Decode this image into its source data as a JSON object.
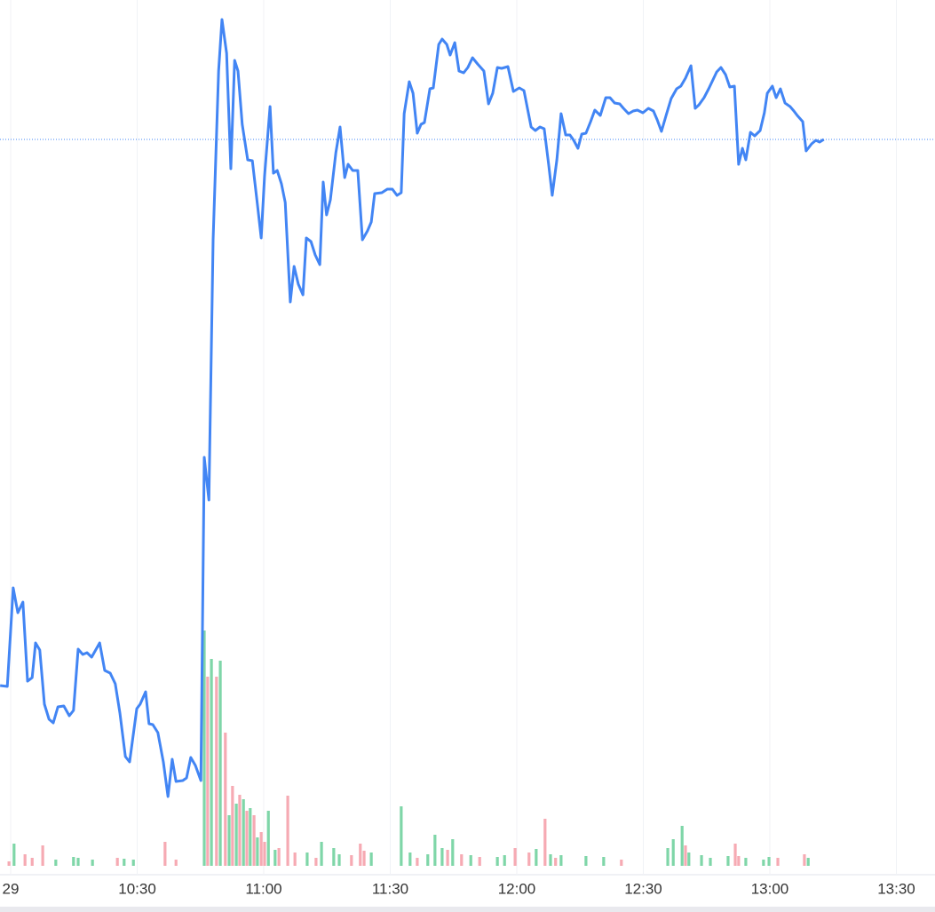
{
  "chart_data": {
    "type": "line",
    "xlim": [
      -2.53,
      219.16
    ],
    "xticks": [
      {
        "value": 0,
        "label": "29"
      },
      {
        "value": 30,
        "label": "10:30"
      },
      {
        "value": 60,
        "label": "11:00"
      },
      {
        "value": 90,
        "label": "11:30"
      },
      {
        "value": 120,
        "label": "12:00"
      },
      {
        "value": 150,
        "label": "12:30"
      },
      {
        "value": 180,
        "label": "13:00"
      },
      {
        "value": 210,
        "label": "13:30"
      }
    ],
    "ylim": [
      0,
      1000
    ],
    "y2lim": [
      0,
      975
    ],
    "grid": true,
    "series": [
      {
        "color": "#4285f4",
        "x": [
          -2.5,
          -0.8,
          0.6,
          1.7,
          2.9,
          4.0,
          5.1,
          5.9,
          6.9,
          8.0,
          9.1,
          10.1,
          11.2,
          12.6,
          13.9,
          14.9,
          16.0,
          17.1,
          18.1,
          19.2,
          21.1,
          22.3,
          23.6,
          24.8,
          25.9,
          27.2,
          28.2,
          29.9,
          30.7,
          32.0,
          32.8,
          33.7,
          34.9,
          36.2,
          37.3,
          38.3,
          39.2,
          40.8,
          41.7,
          42.7,
          43.8,
          45.1,
          45.9,
          47.0,
          48.0,
          49.3,
          50.1,
          51.2,
          52.2,
          53.1,
          53.9,
          54.9,
          56.2,
          57.3,
          58.5,
          59.4,
          60.2,
          61.5,
          62.3,
          63.2,
          64.2,
          65.1,
          66.3,
          67.2,
          68.2,
          69.3,
          70.1,
          71.2,
          72.2,
          73.3,
          74.1,
          74.9,
          75.8,
          77.1,
          78.1,
          79.2,
          80.0,
          81.1,
          82.3,
          83.4,
          84.6,
          85.5,
          86.3,
          88.0,
          89.3,
          90.5,
          91.6,
          92.6,
          93.3,
          94.5,
          95.4,
          96.4,
          97.3,
          98.1,
          99.4,
          100.2,
          101.5,
          102.3,
          103.4,
          104.2,
          105.3,
          106.3,
          107.4,
          108.4,
          109.5,
          110.7,
          112.2,
          113.3,
          114.3,
          115.4,
          116.4,
          117.9,
          119.2,
          120.6,
          121.7,
          123.4,
          124.4,
          125.5,
          126.5,
          127.6,
          128.4,
          129.5,
          130.5,
          131.6,
          132.6,
          133.5,
          134.5,
          135.4,
          136.4,
          137.5,
          138.5,
          139.8,
          141.1,
          142.1,
          143.2,
          144.4,
          145.3,
          146.5,
          147.6,
          148.6,
          149.9,
          151.2,
          152.4,
          153.3,
          154.3,
          155.4,
          156.6,
          157.9,
          158.9,
          160.0,
          161.3,
          162.3,
          163.2,
          164.4,
          165.5,
          166.5,
          167.4,
          168.4,
          169.5,
          170.5,
          171.6,
          172.6,
          173.5,
          174.3,
          175.4,
          176.4,
          177.7,
          178.7,
          179.4,
          180.6,
          181.5,
          182.5,
          183.6,
          184.8,
          185.7,
          186.5,
          187.8,
          188.6,
          189.9,
          190.9,
          191.8,
          192.8
        ],
        "values": [
          228,
          227,
          338,
          310,
          322,
          233,
          237,
          276,
          268,
          207,
          190,
          186,
          204,
          205,
          194,
          200,
          269,
          263,
          265,
          260,
          276,
          245,
          242,
          230,
          197,
          148,
          142,
          202,
          207,
          221,
          185,
          184,
          175,
          142,
          103,
          145,
          120,
          121,
          124,
          147,
          138,
          121,
          485,
          437,
          730,
          920,
          978,
          940,
          810,
          932,
          920,
          860,
          820,
          819,
          770,
          732,
          802,
          880,
          805,
          808,
          793,
          772,
          660,
          700,
          680,
          668,
          732,
          728,
          713,
          702,
          795,
          758,
          775,
          828,
          857,
          800,
          815,
          808,
          808,
          730,
          740,
          750,
          782,
          783,
          787,
          787,
          780,
          783,
          872,
          908,
          895,
          850,
          860,
          862,
          900,
          901,
          950,
          956,
          950,
          938,
          952,
          920,
          918,
          924,
          935,
          928,
          920,
          883,
          895,
          924,
          923,
          925,
          897,
          901,
          898,
          857,
          853,
          857,
          855,
          813,
          780,
          820,
          872,
          848,
          848,
          842,
          833,
          849,
          850,
          863,
          876,
          870,
          890,
          890,
          884,
          883,
          878,
          872,
          875,
          876,
          873,
          878,
          875,
          865,
          852,
          870,
          889,
          900,
          903,
          912,
          926,
          878,
          882,
          890,
          900,
          910,
          919,
          924,
          916,
          902,
          903,
          815,
          833,
          820,
          851,
          847,
          853,
          873,
          895,
          903,
          890,
          900,
          884,
          880,
          875,
          870,
          863,
          830,
          838,
          842,
          840,
          843
        ]
      },
      {
        "type": "bar",
        "axis": "y2",
        "color": "#7fd6a8",
        "x": [
          0.8,
          10.7,
          14.9,
          16.0,
          19.4,
          26.9,
          29.1,
          45.9,
          47.6,
          49.7,
          51.8,
          53.5,
          55.2,
          56.8,
          58.5,
          61.1,
          62.7,
          70.3,
          73.7,
          76.6,
          77.9,
          85.5,
          92.6,
          94.7,
          98.9,
          100.6,
          102.3,
          104.8,
          109.1,
          115.4,
          117.1,
          124.6,
          128.0,
          130.5,
          136.4,
          140.6,
          155.8,
          157.1,
          159.2,
          160.8,
          163.8,
          165.9,
          170.1,
          174.3,
          178.5,
          179.8,
          189.1
        ],
        "values": [
          25,
          7,
          10,
          9,
          7,
          8,
          7,
          265,
          233,
          231,
          57,
          70,
          75,
          65,
          32,
          62,
          18,
          15,
          27,
          20,
          13,
          15,
          67,
          15,
          13,
          35,
          20,
          30,
          12,
          10,
          12,
          19,
          13,
          12,
          11,
          10,
          20,
          30,
          45,
          15,
          12,
          9,
          11,
          9,
          7,
          10,
          9
        ]
      },
      {
        "type": "bar",
        "axis": "y2",
        "color": "#f6aab3",
        "x": [
          -0.4,
          3.4,
          5.1,
          7.6,
          25.3,
          36.6,
          39.2,
          46.7,
          48.8,
          50.9,
          52.6,
          54.3,
          56.0,
          57.7,
          59.4,
          60.2,
          63.6,
          65.7,
          67.4,
          72.4,
          80.8,
          82.9,
          83.8,
          96.4,
          103.6,
          106.9,
          111.2,
          119.6,
          122.9,
          126.7,
          129.2,
          144.8,
          160.0,
          171.8,
          172.6,
          181.9,
          188.2
        ],
        "values": [
          5,
          13,
          9,
          23,
          9,
          27,
          7,
          213,
          213,
          150,
          90,
          80,
          62,
          57,
          38,
          27,
          20,
          79,
          15,
          9,
          12,
          25,
          17,
          9,
          18,
          13,
          10,
          20,
          15,
          53,
          9,
          7,
          23,
          25,
          11,
          9,
          13
        ]
      }
    ]
  }
}
